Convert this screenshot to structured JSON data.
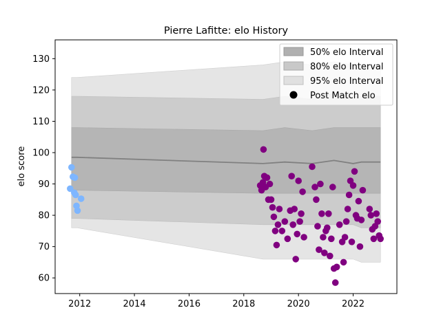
{
  "chart_data": {
    "type": "scatter",
    "title": "Pierre Lafitte: elo History",
    "xlabel": "",
    "ylabel": "elo score",
    "xlim": [
      2011.1,
      2023.6
    ],
    "ylim": [
      55,
      136
    ],
    "x_ticks": [
      2012,
      2014,
      2016,
      2018,
      2020,
      2022
    ],
    "x_tick_labels": [
      "2012",
      "2014",
      "2016",
      "2018",
      "2020",
      "2022"
    ],
    "y_ticks": [
      60,
      70,
      80,
      90,
      100,
      110,
      120,
      130
    ],
    "y_tick_labels": [
      "60",
      "70",
      "80",
      "90",
      "100",
      "110",
      "120",
      "130"
    ],
    "grid": false,
    "legend": {
      "placement": "top-right",
      "entries": [
        {
          "label": "50% elo Interval",
          "color": "#b0b0b0"
        },
        {
          "label": "80% elo Interval",
          "color": "#c8c8c8"
        },
        {
          "label": "95% elo Interval",
          "color": "#e0e0e0"
        },
        {
          "label": "Post Match elo",
          "color": "#000000"
        }
      ]
    },
    "colors": {
      "early_points": "#7eb6ff",
      "later_points": "#800080",
      "median_line": "#808080",
      "band50": "#b0b0b0",
      "band80": "#c8c8c8",
      "band95": "#e0e0e0"
    },
    "bands": {
      "x": [
        2011.7,
        2011.9,
        2018.7,
        2019.5,
        2020.5,
        2021.3,
        2022.0,
        2022.3,
        2023.0
      ],
      "median": [
        98.5,
        98.5,
        96.5,
        97.0,
        96.5,
        97.5,
        96.5,
        97.0,
        97.0
      ],
      "p50_low": [
        88,
        88,
        87,
        87,
        87,
        87,
        87,
        87,
        87
      ],
      "p50_high": [
        108,
        108,
        107,
        108,
        107,
        108,
        108,
        108,
        108
      ],
      "p80_low": [
        79,
        79,
        77,
        77,
        77,
        77,
        77,
        76,
        76
      ],
      "p80_high": [
        118,
        118,
        117,
        118,
        117,
        119,
        118,
        118,
        118
      ],
      "p95_low": [
        76,
        76,
        66,
        66,
        66,
        66,
        66,
        65,
        65
      ],
      "p95_high": [
        124,
        124,
        128,
        129,
        128,
        129,
        128,
        128,
        128
      ]
    },
    "series": [
      {
        "name": "",
        "x": [
          2011.65,
          2011.7,
          2011.75,
          2011.8,
          2011.82,
          2011.85,
          2011.88,
          2011.92,
          2012.05
        ],
        "y": [
          88.5,
          95.3,
          92.3,
          87.2,
          92.0,
          86.5,
          83.0,
          81.5,
          85.3
        ]
      },
      {
        "name": "",
        "x": [
          2018.6,
          2018.65,
          2018.7,
          2018.72,
          2018.75,
          2018.8,
          2018.85,
          2018.9,
          2018.95,
          2019.0,
          2019.05,
          2019.1,
          2019.15,
          2019.2,
          2019.25,
          2019.3,
          2019.4,
          2019.5,
          2019.6,
          2019.7,
          2019.75,
          2019.8,
          2019.85,
          2019.9,
          2019.95,
          2020.0,
          2020.05,
          2020.1,
          2020.15,
          2020.2,
          2020.5,
          2020.6,
          2020.65,
          2020.7,
          2020.75,
          2020.8,
          2020.85,
          2020.9,
          2020.95,
          2021.0,
          2021.05,
          2021.1,
          2021.15,
          2021.2,
          2021.25,
          2021.3,
          2021.35,
          2021.4,
          2021.5,
          2021.6,
          2021.65,
          2021.7,
          2021.75,
          2021.8,
          2021.85,
          2021.9,
          2021.95,
          2022.0,
          2022.05,
          2022.1,
          2022.15,
          2022.2,
          2022.25,
          2022.3,
          2022.35,
          2022.6,
          2022.65,
          2022.7,
          2022.75,
          2022.8,
          2022.85,
          2022.9,
          2022.95,
          2023.0
        ],
        "y": [
          89.5,
          88.0,
          90.5,
          101.0,
          92.5,
          89.0,
          92.0,
          85.0,
          90.0,
          85.0,
          82.5,
          79.5,
          75.0,
          70.5,
          77.0,
          82.0,
          75.0,
          78.0,
          72.5,
          81.5,
          92.5,
          77.0,
          82.0,
          66.0,
          74.0,
          91.0,
          78.0,
          80.5,
          87.5,
          73.0,
          95.5,
          89.0,
          85.0,
          76.5,
          69.0,
          90.0,
          80.5,
          73.0,
          68.0,
          75.0,
          76.0,
          80.5,
          67.0,
          72.5,
          89.0,
          63.0,
          58.5,
          63.5,
          77.0,
          71.5,
          65.0,
          73.0,
          78.0,
          82.0,
          86.5,
          91.0,
          71.5,
          89.5,
          94.0,
          80.0,
          79.0,
          84.5,
          70.0,
          78.5,
          88.0,
          82.0,
          80.0,
          75.5,
          72.5,
          76.5,
          80.5,
          78.0,
          73.5,
          72.5
        ]
      }
    ]
  }
}
